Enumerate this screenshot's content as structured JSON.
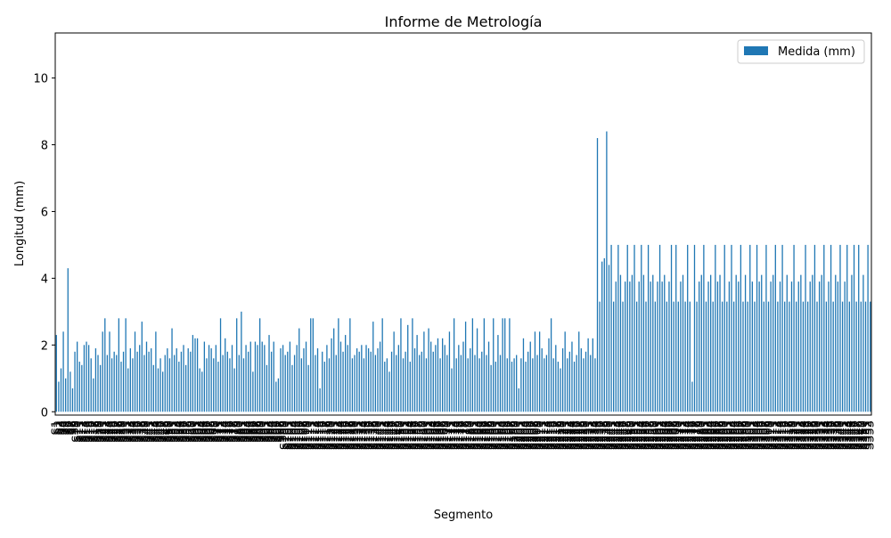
{
  "chart_data": {
    "type": "bar",
    "title": "Informe de Metrología",
    "xlabel": "Segmento",
    "ylabel": "Longitud (mm)",
    "ylim": [
      -0.1,
      11.35
    ],
    "yticks": [
      0,
      2,
      4,
      6,
      8,
      10
    ],
    "grid": false,
    "legend_position": "top-right",
    "bar_color": "#1f77b4",
    "series": [
      {
        "name": "Medida (mm)",
        "values": [
          2.3,
          0.9,
          1.3,
          2.4,
          1.0,
          4.3,
          1.2,
          0.7,
          1.8,
          2.1,
          1.5,
          1.4,
          2.0,
          2.1,
          2.0,
          1.6,
          1.0,
          1.9,
          1.7,
          1.4,
          2.4,
          2.8,
          1.7,
          2.4,
          1.6,
          1.8,
          1.7,
          2.8,
          1.5,
          1.8,
          2.8,
          1.3,
          1.9,
          1.6,
          2.4,
          1.8,
          2.0,
          2.7,
          1.7,
          2.1,
          1.8,
          1.9,
          1.4,
          2.4,
          1.3,
          1.6,
          1.2,
          1.7,
          1.9,
          1.6,
          2.5,
          1.7,
          1.9,
          1.5,
          1.8,
          2.0,
          1.4,
          1.9,
          1.8,
          2.3,
          2.2,
          2.2,
          1.3,
          1.2,
          2.1,
          1.6,
          2.0,
          1.9,
          1.6,
          2.0,
          1.5,
          2.8,
          1.7,
          2.2,
          1.8,
          1.6,
          2.0,
          1.3,
          2.8,
          1.7,
          3.0,
          1.6,
          2.0,
          1.8,
          2.1,
          1.2,
          2.1,
          2.0,
          2.8,
          2.1,
          2.0,
          1.4,
          2.3,
          1.8,
          2.1,
          0.9,
          1.0,
          1.9,
          2.0,
          1.7,
          1.8,
          2.1,
          1.4,
          1.7,
          2.0,
          2.5,
          1.6,
          1.9,
          2.1,
          1.4,
          2.8,
          2.8,
          1.7,
          1.9,
          0.7,
          1.8,
          1.5,
          2.0,
          1.6,
          2.2,
          2.5,
          1.7,
          2.8,
          2.1,
          1.8,
          2.3,
          2.0,
          2.8,
          1.6,
          1.7,
          1.9,
          1.8,
          2.0,
          1.6,
          2.0,
          1.9,
          1.8,
          2.7,
          1.7,
          1.9,
          2.1,
          2.8,
          1.5,
          1.6,
          1.2,
          1.8,
          2.4,
          1.7,
          2.0,
          2.8,
          1.6,
          1.8,
          2.6,
          1.5,
          2.8,
          1.9,
          2.3,
          1.7,
          1.8,
          2.4,
          1.6,
          2.5,
          2.1,
          1.8,
          2.0,
          2.2,
          1.6,
          2.2,
          2.0,
          1.7,
          2.4,
          1.3,
          2.8,
          1.6,
          2.0,
          1.7,
          2.1,
          2.7,
          1.6,
          1.9,
          2.8,
          1.7,
          2.5,
          1.6,
          1.8,
          2.8,
          1.7,
          2.1,
          1.4,
          2.8,
          1.5,
          2.3,
          1.7,
          2.8,
          2.8,
          1.6,
          2.8,
          1.5,
          1.6,
          1.7,
          0.7,
          1.6,
          2.2,
          1.5,
          1.8,
          2.1,
          1.6,
          2.4,
          1.7,
          2.4,
          1.9,
          1.6,
          1.7,
          2.2,
          2.8,
          1.6,
          2.0,
          1.5,
          1.3,
          1.9,
          2.4,
          1.6,
          1.8,
          2.1,
          1.5,
          1.7,
          2.4,
          1.9,
          1.6,
          1.8,
          2.2,
          1.7,
          2.2,
          1.6,
          8.2,
          3.3,
          4.5,
          4.6,
          8.4,
          4.4,
          5.0,
          3.3,
          3.9,
          5.0,
          4.1,
          3.3,
          3.9,
          5.0,
          3.9,
          4.1,
          5.0,
          3.3,
          3.9,
          5.0,
          4.1,
          3.3,
          5.0,
          3.9,
          4.1,
          3.3,
          3.9,
          5.0,
          3.9,
          4.1,
          3.3,
          3.9,
          5.0,
          3.3,
          5.0,
          3.3,
          3.9,
          4.1,
          3.3,
          5.0,
          3.3,
          0.9,
          5.0,
          3.3,
          3.9,
          4.1,
          5.0,
          3.3,
          3.9,
          4.1,
          3.3,
          5.0,
          3.9,
          4.1,
          3.3,
          5.0,
          3.3,
          3.9,
          5.0,
          3.3,
          4.1,
          3.9,
          5.0,
          3.3,
          4.1,
          3.3,
          5.0,
          3.9,
          3.3,
          5.0,
          3.9,
          4.1,
          3.3,
          5.0,
          3.3,
          3.9,
          4.1,
          5.0,
          3.3,
          3.9,
          5.0,
          3.3,
          4.1,
          3.3,
          3.9,
          5.0,
          3.3,
          3.9,
          4.1,
          3.3,
          5.0,
          3.3,
          3.9,
          4.1,
          5.0,
          3.3,
          3.9,
          4.1,
          5.0,
          3.3,
          3.9,
          5.0,
          3.3,
          4.1,
          3.9,
          5.0,
          3.3,
          3.9,
          5.0,
          3.3,
          4.1,
          5.0,
          3.3,
          5.0,
          3.3,
          4.1,
          3.3,
          5.0,
          3.3
        ]
      }
    ],
    "category_prefix": "S"
  }
}
